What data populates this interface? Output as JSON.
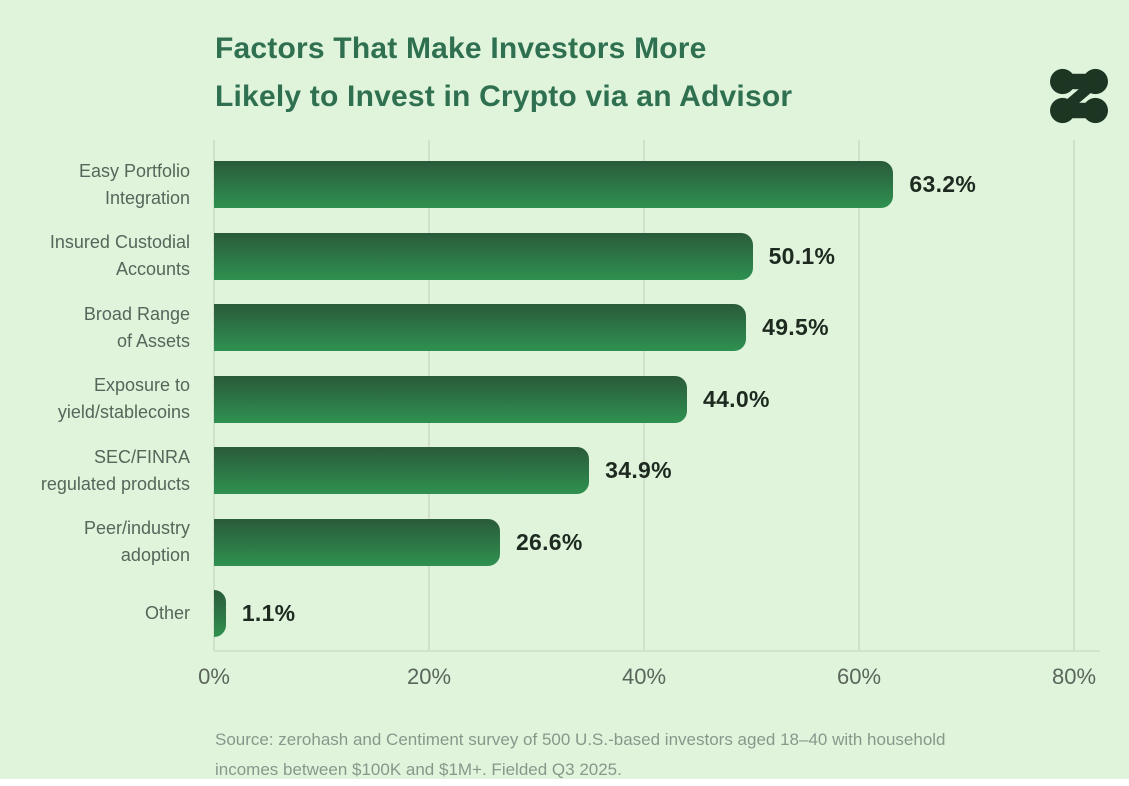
{
  "title": {
    "line1": "Factors That Make Investors More",
    "line2": "Likely to Invest in Crypto via an Advisor"
  },
  "logo": {
    "name": "zerohash-logo",
    "color": "#1c3623"
  },
  "chart_data": {
    "type": "bar",
    "orientation": "horizontal",
    "title": "Factors That Make Investors More Likely to Invest in Crypto via an Advisor",
    "categories": [
      "Easy Portfolio\nIntegration",
      "Insured Custodial\nAccounts",
      "Broad Range\nof Assets",
      "Exposure to\nyield/stablecoins",
      "SEC/FINRA\nregulated products",
      "Peer/industry\nadoption",
      "Other"
    ],
    "values": [
      63.2,
      50.1,
      49.5,
      44.0,
      34.9,
      26.6,
      1.1
    ],
    "value_labels": [
      "63.2%",
      "50.1%",
      "49.5%",
      "44.0%",
      "34.9%",
      "26.6%",
      "1.1%"
    ],
    "xlabel": "",
    "ylabel": "",
    "xlim": [
      0,
      80
    ],
    "x_ticks": [
      "0%",
      "20%",
      "40%",
      "60%",
      "80%"
    ],
    "grid": "vertical",
    "legend": "none",
    "bar_gradient_top": "#2a5a3a",
    "bar_gradient_bottom": "#2f9150"
  },
  "source": {
    "line1": "Source: zerohash and Centiment survey of 500 U.S.-based investors aged 18–40 with household",
    "line2": "incomes between $100K and $1M+. Fielded Q3 2025."
  },
  "colors": {
    "background": "#e0f4dc",
    "title_text": "#2e7050",
    "category_text": "#55665a",
    "tick_text": "#5a665b",
    "value_text": "#1e2a20",
    "gridline": "#cfe0cb",
    "logo": "#1c3623"
  }
}
